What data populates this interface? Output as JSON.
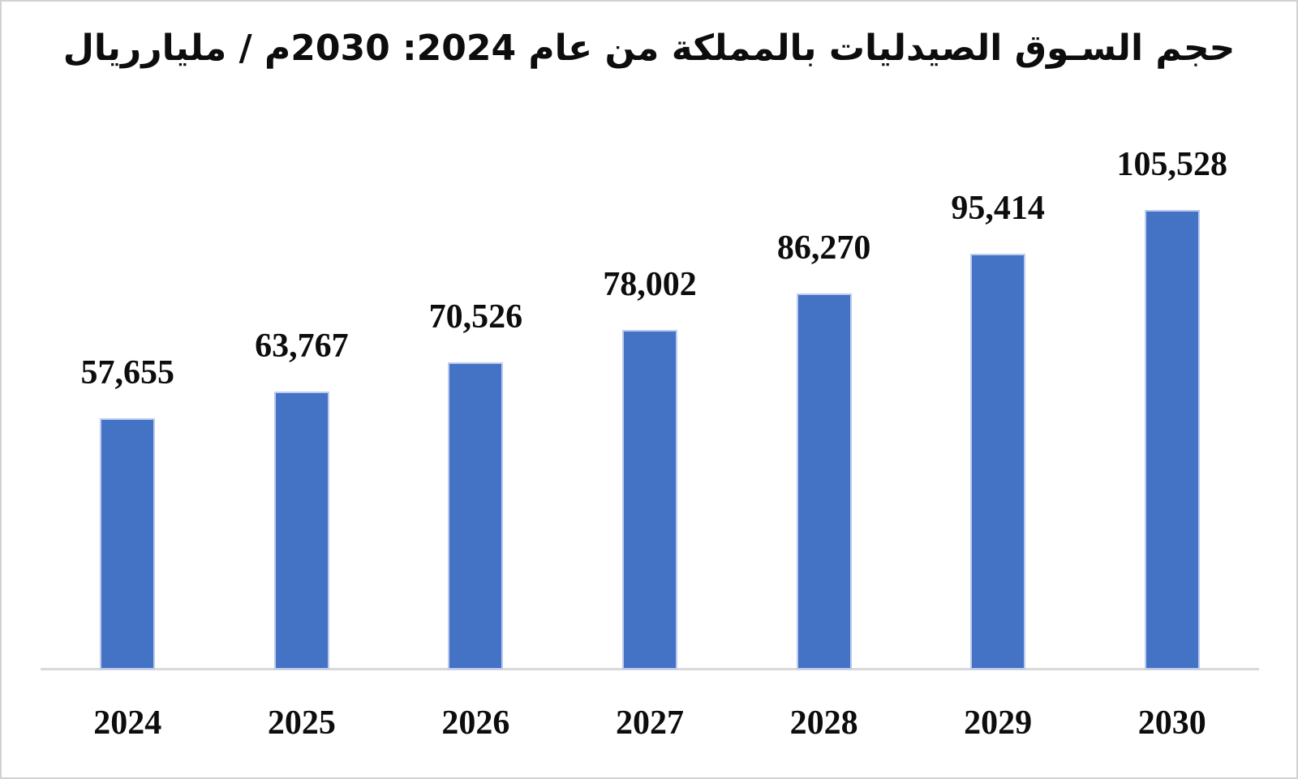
{
  "page": {
    "background": "#ffffff",
    "border_color": "#d2d2d2"
  },
  "chart_data": {
    "type": "bar",
    "title": "حجم السـوق الصيدليات بالمملكة من عام 2024: 2030م / مليارريال",
    "title_direction": "rtl",
    "categories": [
      "2024",
      "2025",
      "2026",
      "2027",
      "2028",
      "2029",
      "2030"
    ],
    "values": [
      57655,
      63767,
      70526,
      78002,
      86270,
      95414,
      105528
    ],
    "value_labels": [
      "57,655",
      "63,767",
      "70,526",
      "78,002",
      "86,270",
      "95,414",
      "105,528"
    ],
    "xlabel": "",
    "ylabel": "",
    "ylim": [
      0,
      110000
    ],
    "grid": false,
    "legend": false,
    "bar_color": "#4472C4",
    "bar_border_color": "#BCCBEE",
    "axis_line_color": "#D9D9D9",
    "label_color": "#0D0D0D"
  }
}
